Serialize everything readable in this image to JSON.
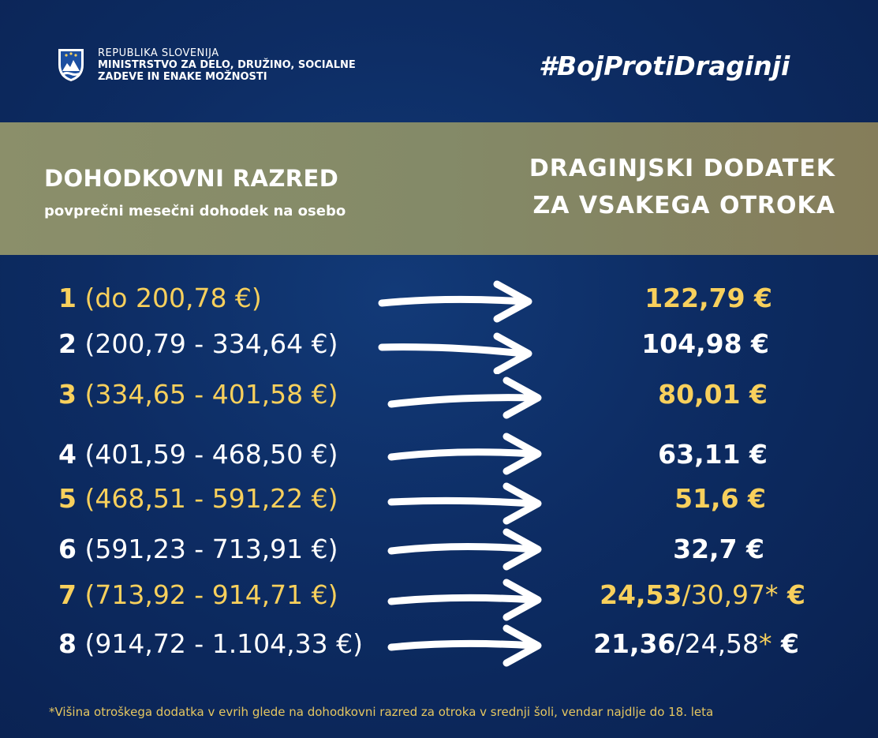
{
  "header": {
    "ministry_line1": "REPUBLIKA SLOVENIJA",
    "ministry_line2": "MINISTRSTVO ZA DELO, DRUŽINO, SOCIALNE",
    "ministry_line3": "ZADEVE IN ENAKE MOŽNOSTI",
    "hashtag": "#BojProtiDraginji",
    "logo_icon": "slovenia-coat-of-arms-icon"
  },
  "band": {
    "left_title": "DOHODKOVNI RAZRED",
    "left_subtitle": "povprečni mesečni dohodek na osebo",
    "right_line1": "DRAGINJSKI DODATEK",
    "right_line2": "ZA VSAKEGA OTROKA"
  },
  "rows": [
    {
      "num": "1",
      "range": "(do 200,78 €)",
      "value": "122,79 €",
      "alt": "",
      "value_suffix": ""
    },
    {
      "num": "2",
      "range": "(200,79 - 334,64 €)",
      "value": "104,98 €",
      "alt": "",
      "value_suffix": ""
    },
    {
      "num": "3",
      "range": "(334,65 - 401,58 €)",
      "value": "80,01 €",
      "alt": "",
      "value_suffix": ""
    },
    {
      "num": "4",
      "range": "(401,59 - 468,50 €)",
      "value": "63,11 €",
      "alt": "",
      "value_suffix": ""
    },
    {
      "num": "5",
      "range": "(468,51 - 591,22 €)",
      "value": "51,6 €",
      "alt": "",
      "value_suffix": ""
    },
    {
      "num": "6",
      "range": "(591,23 - 713,91 €)",
      "value": "32,7 €",
      "alt": "",
      "value_suffix": ""
    },
    {
      "num": "7",
      "range": "(713,92 - 914,71 €)",
      "value": "24,53",
      "alt": "/30,97*",
      "value_suffix": " €"
    },
    {
      "num": "8",
      "range": "(914,72 - 1.104,33 €)",
      "value": "21,36",
      "alt": "/24,58",
      "star": "*",
      "value_suffix": " €"
    }
  ],
  "footnote": "*Višina otroškega dodatka v evrih glede na dohodkovni razred za otroka v srednji šoli, vendar najdlje do 18. leta",
  "colors": {
    "background": "#0d2c63",
    "band": "#878a67",
    "accent_yellow": "#f8d05c"
  }
}
